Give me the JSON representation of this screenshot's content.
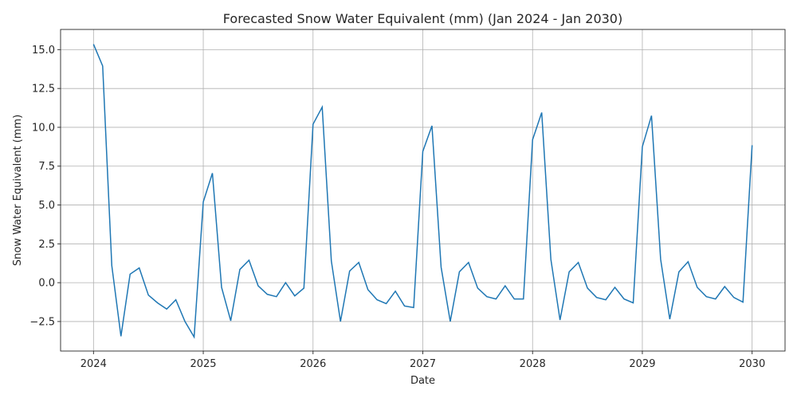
{
  "chart_data": {
    "type": "line",
    "title": "Forecasted Snow Water Equivalent (mm) (Jan 2024 - Jan 2030)",
    "xlabel": "Date",
    "ylabel": "Snow Water Equivalent (mm)",
    "x_start": "2024-01",
    "x_step": "1 month",
    "xticks": [
      {
        "value": 2024,
        "label": "2024"
      },
      {
        "value": 2025,
        "label": "2025"
      },
      {
        "value": 2026,
        "label": "2026"
      },
      {
        "value": 2027,
        "label": "2027"
      },
      {
        "value": 2028,
        "label": "2028"
      },
      {
        "value": 2029,
        "label": "2029"
      },
      {
        "value": 2030,
        "label": "2030"
      }
    ],
    "yticks": [
      {
        "value": -2.5,
        "label": "−2.5"
      },
      {
        "value": 0,
        "label": "0.0"
      },
      {
        "value": 2.5,
        "label": "2.5"
      },
      {
        "value": 5,
        "label": "5.0"
      },
      {
        "value": 7.5,
        "label": "7.5"
      },
      {
        "value": 10,
        "label": "10.0"
      },
      {
        "value": 12.5,
        "label": "12.5"
      },
      {
        "value": 15,
        "label": "15.0"
      }
    ],
    "xlim": [
      2023.7,
      2030.3
    ],
    "ylim": [
      -4.4,
      16.3
    ],
    "grid": true,
    "color": "#1f77b4",
    "series": [
      {
        "values": [
          15.35,
          13.95,
          1.1,
          -3.45,
          0.55,
          0.95,
          -0.8,
          -1.3,
          -1.7,
          -1.1,
          -2.5,
          -3.5,
          5.2,
          7.05,
          -0.3,
          -2.45,
          0.85,
          1.45,
          -0.2,
          -0.75,
          -0.9,
          0.0,
          -0.85,
          -0.35,
          10.2,
          11.3,
          1.4,
          -2.5,
          0.75,
          1.3,
          -0.45,
          -1.1,
          -1.35,
          -0.55,
          -1.5,
          -1.6,
          8.45,
          10.1,
          1.0,
          -2.5,
          0.7,
          1.3,
          -0.35,
          -0.9,
          -1.05,
          -0.2,
          -1.05,
          -1.05,
          9.2,
          10.95,
          1.5,
          -2.4,
          0.7,
          1.3,
          -0.35,
          -0.95,
          -1.1,
          -0.3,
          -1.05,
          -1.3,
          8.75,
          10.75,
          1.5,
          -2.35,
          0.7,
          1.35,
          -0.3,
          -0.9,
          -1.05,
          -0.25,
          -0.95,
          -1.25,
          8.85
        ]
      }
    ]
  }
}
